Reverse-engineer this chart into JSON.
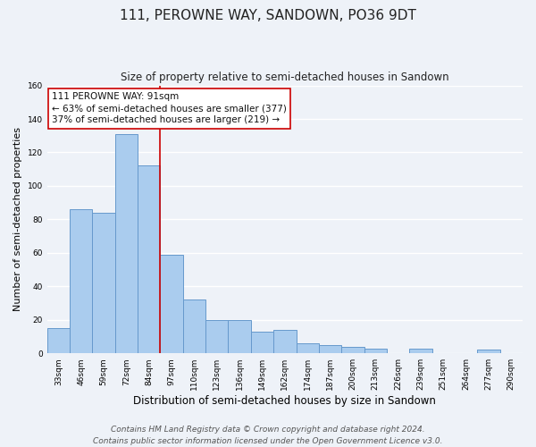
{
  "title": "111, PEROWNE WAY, SANDOWN, PO36 9DT",
  "subtitle": "Size of property relative to semi-detached houses in Sandown",
  "xlabel": "Distribution of semi-detached houses by size in Sandown",
  "ylabel": "Number of semi-detached properties",
  "categories": [
    "33sqm",
    "46sqm",
    "59sqm",
    "72sqm",
    "84sqm",
    "97sqm",
    "110sqm",
    "123sqm",
    "136sqm",
    "149sqm",
    "162sqm",
    "174sqm",
    "187sqm",
    "200sqm",
    "213sqm",
    "226sqm",
    "239sqm",
    "251sqm",
    "264sqm",
    "277sqm",
    "290sqm"
  ],
  "values": [
    15,
    86,
    84,
    131,
    112,
    59,
    32,
    20,
    20,
    13,
    14,
    6,
    5,
    4,
    3,
    0,
    3,
    0,
    0,
    2,
    0
  ],
  "bar_color": "#aaccee",
  "bar_edge_color": "#6699cc",
  "highlight_color": "#cc0000",
  "annotation_title": "111 PEROWNE WAY: 91sqm",
  "annotation_line1": "← 63% of semi-detached houses are smaller (377)",
  "annotation_line2": "37% of semi-detached houses are larger (219) →",
  "annotation_box_color": "#ffffff",
  "annotation_box_edge": "#cc0000",
  "footer_line1": "Contains HM Land Registry data © Crown copyright and database right 2024.",
  "footer_line2": "Contains public sector information licensed under the Open Government Licence v3.0.",
  "ylim": [
    0,
    160
  ],
  "background_color": "#eef2f8",
  "grid_color": "#ffffff",
  "title_fontsize": 11,
  "subtitle_fontsize": 8.5,
  "axis_label_fontsize": 8,
  "tick_fontsize": 6.5,
  "annotation_fontsize": 7.5,
  "footer_fontsize": 6.5
}
